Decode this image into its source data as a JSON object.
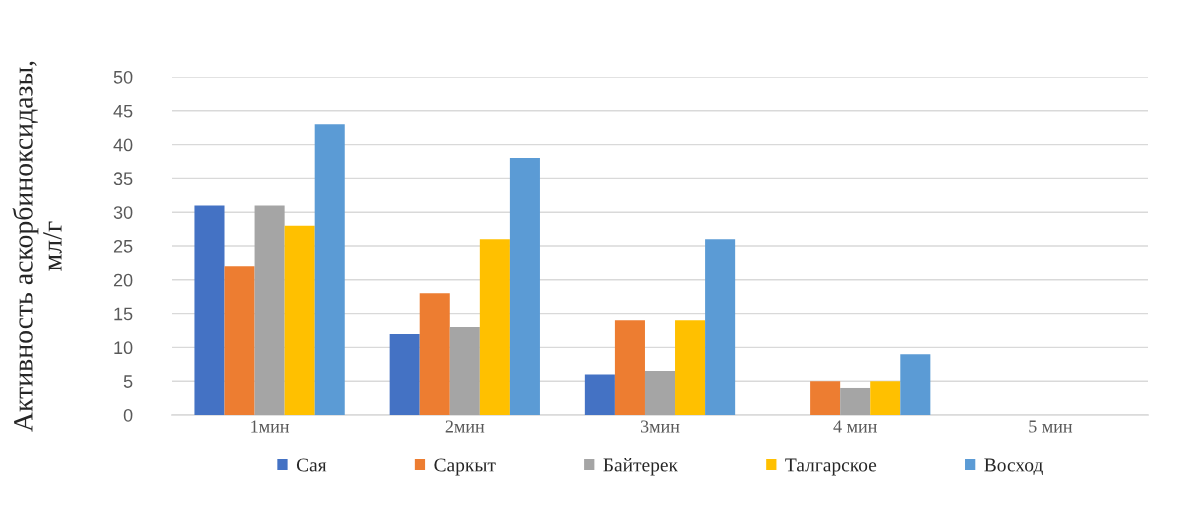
{
  "chart_data": {
    "type": "bar",
    "ylabel": "Активность аскорбиноксидазы,\nмл/г",
    "categories": [
      "1мин",
      "2мин",
      "3мин",
      "4 мин",
      "5 мин"
    ],
    "series": [
      {
        "name": "Сая",
        "color": "#4472c4",
        "values": [
          31,
          12,
          6,
          0,
          0
        ]
      },
      {
        "name": "Саркыт",
        "color": "#ed7d31",
        "values": [
          22,
          18,
          14,
          5,
          0
        ]
      },
      {
        "name": "Байтерек",
        "color": "#a5a5a5",
        "values": [
          31,
          13,
          6.5,
          4,
          0
        ]
      },
      {
        "name": "Талгарское",
        "color": "#ffc000",
        "values": [
          28,
          26,
          14,
          5,
          0
        ]
      },
      {
        "name": "Восход",
        "color": "#5b9bd5",
        "values": [
          43,
          38,
          26,
          9,
          0
        ]
      }
    ],
    "ylim": [
      0,
      50
    ],
    "yticks": [
      0,
      5,
      10,
      15,
      20,
      25,
      30,
      35,
      40,
      45,
      50
    ],
    "grid": "y",
    "legend": "bottom"
  }
}
